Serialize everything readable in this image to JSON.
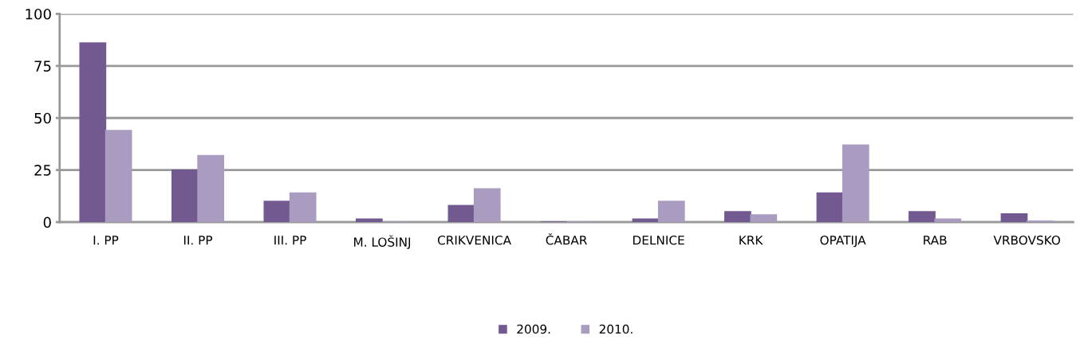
{
  "chart_data": {
    "type": "bar",
    "categories": [
      "I. PP",
      "II. PP",
      "III. PP",
      "M. LOŠINJ",
      "CRIKVENICA",
      "ČABAR",
      "DELNICE",
      "KRK",
      "OPATIJA",
      "RAB",
      "VRBOVSKO"
    ],
    "series": [
      {
        "name": "2009.",
        "color": "#725a91",
        "values": [
          86,
          25,
          10,
          1.5,
          8,
          0,
          1.5,
          5,
          14,
          5,
          4
        ]
      },
      {
        "name": "2010.",
        "color": "#aa9bc0",
        "values": [
          44,
          32,
          14,
          0,
          16,
          0,
          10,
          3.5,
          37,
          1.5,
          0.5
        ]
      }
    ],
    "ylim": [
      0,
      100
    ],
    "yticks": [
      0,
      25,
      50,
      75,
      100
    ],
    "grid": "y",
    "legend": "bottom"
  }
}
